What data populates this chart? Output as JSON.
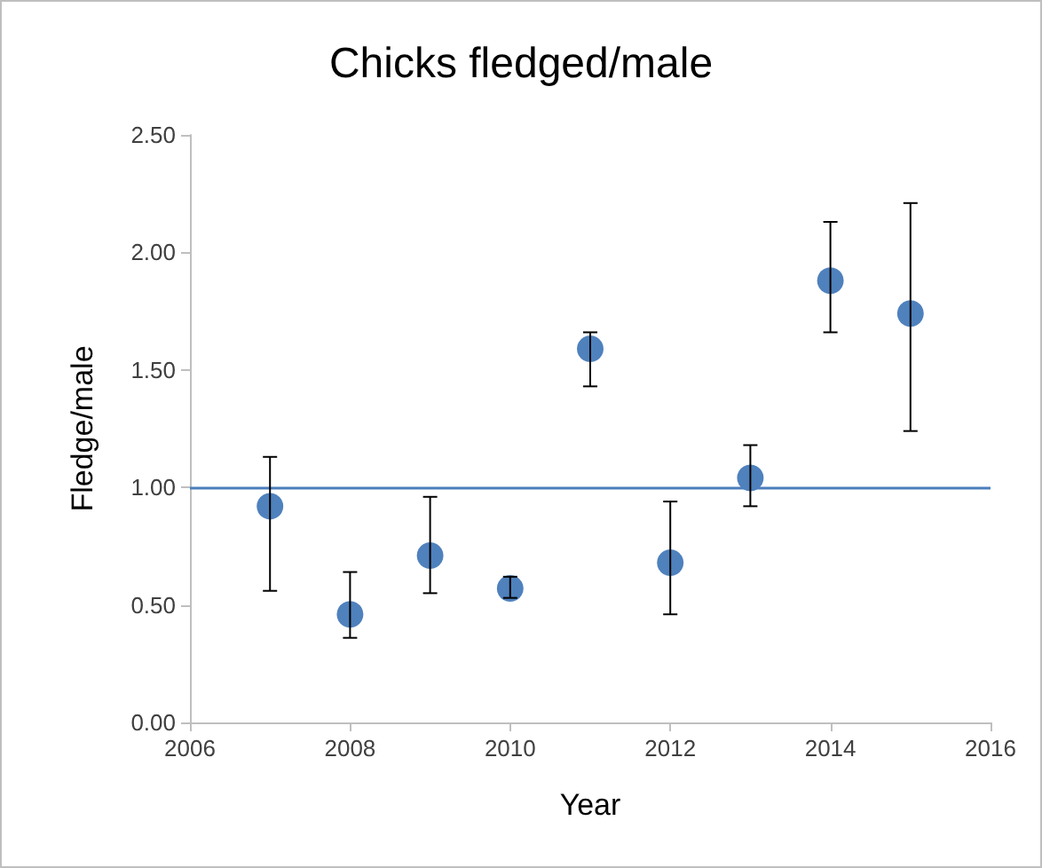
{
  "chart_data": {
    "type": "scatter",
    "title": "Chicks fledged/male",
    "xlabel": "Year",
    "ylabel": "Fledge/male",
    "x": [
      2007,
      2008,
      2009,
      2010,
      2011,
      2012,
      2013,
      2014,
      2015
    ],
    "series": [
      {
        "color": "#4f81bd",
        "values": [
          0.92,
          0.46,
          0.71,
          0.57,
          1.59,
          0.68,
          1.04,
          1.88,
          1.74
        ],
        "errors": [
          [
            0.56,
            1.13
          ],
          [
            0.36,
            0.64
          ],
          [
            0.55,
            0.96
          ],
          [
            0.53,
            0.62
          ],
          [
            1.43,
            1.66
          ],
          [
            0.46,
            0.94
          ],
          [
            0.92,
            1.18
          ],
          [
            1.66,
            2.13
          ],
          [
            1.24,
            2.21
          ]
        ]
      }
    ],
    "xlim": [
      2006,
      2016
    ],
    "xticks": [
      2006,
      2008,
      2010,
      2012,
      2014,
      2016
    ],
    "ylim": [
      0,
      2.5
    ],
    "yticks": [
      {
        "value": 0,
        "label": "0.00"
      },
      {
        "value": 0.5,
        "label": "0.50"
      },
      {
        "value": 1,
        "label": "1.00"
      },
      {
        "value": 1.5,
        "label": "1.50"
      },
      {
        "value": 2,
        "label": "2.00"
      },
      {
        "value": 2.5,
        "label": "2.50"
      }
    ],
    "ref_lines": [
      {
        "axis": "y",
        "value": 1,
        "color": "#4a7ebb"
      }
    ],
    "grid": false,
    "marker": "circle"
  }
}
